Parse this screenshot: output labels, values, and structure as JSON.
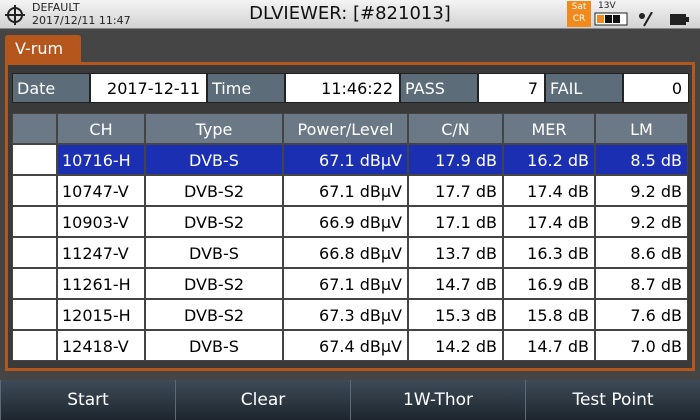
{
  "header": {
    "profile": "DEFAULT",
    "datetime": "2017/12/11 11:47",
    "title": "DLVIEWER: [#821013]",
    "badge": "Sat CR",
    "voltage": "13V"
  },
  "tab": "V-rum",
  "summary": [
    {
      "label": "Date",
      "value": "2017-12-11"
    },
    {
      "label": "Time",
      "value": "11:46:22"
    },
    {
      "label": "PASS",
      "value": "7"
    },
    {
      "label": "FAIL",
      "value": "0"
    }
  ],
  "table": {
    "columns": [
      "CH",
      "Type",
      "Power/Level",
      "C/N",
      "MER",
      "LM"
    ],
    "selected_row": 0,
    "rows": [
      [
        "10716-H",
        "DVB-S",
        "67.1 dBµV",
        "17.9 dB",
        "16.2 dB",
        "8.5 dB"
      ],
      [
        "10747-V",
        "DVB-S2",
        "67.1 dBµV",
        "17.7 dB",
        "17.4 dB",
        "9.2 dB"
      ],
      [
        "10903-V",
        "DVB-S2",
        "66.9 dBµV",
        "17.1 dB",
        "17.4 dB",
        "9.2 dB"
      ],
      [
        "11247-V",
        "DVB-S",
        "66.8 dBµV",
        "13.7 dB",
        "16.3 dB",
        "8.6 dB"
      ],
      [
        "11261-H",
        "DVB-S2",
        "67.1 dBµV",
        "14.7 dB",
        "16.9 dB",
        "8.7 dB"
      ],
      [
        "12015-H",
        "DVB-S2",
        "67.3 dBµV",
        "15.3 dB",
        "15.8 dB",
        "7.6 dB"
      ],
      [
        "12418-V",
        "DVB-S",
        "67.4 dBµV",
        "14.2 dB",
        "14.7 dB",
        "7.0 dB"
      ]
    ]
  },
  "buttons": [
    "Start",
    "Clear",
    "1W-Thor",
    "Test Point"
  ]
}
